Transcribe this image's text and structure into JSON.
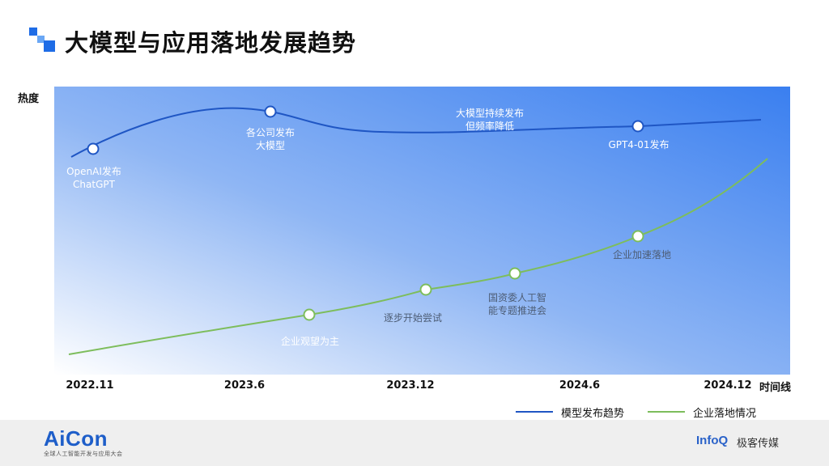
{
  "title": "大模型与应用落地发展趋势",
  "colors": {
    "model_line": "#1f56c4",
    "enterprise_line": "#7dbd5c",
    "bg_dark": "#3a7ff0",
    "bg_light": "#ffffff",
    "accent": "#1e6ce6"
  },
  "chart_data": {
    "type": "line",
    "ylabel": "热度",
    "xlabel": "时间线",
    "x_ticks": [
      "2022.11",
      "2023.6",
      "2023.12",
      "2024.6",
      "2024.12"
    ],
    "series": [
      {
        "name": "模型发布趋势",
        "color": "#1f56c4",
        "points": [
          {
            "x": "2022.12",
            "label": "OpenAI发布\nChatGPT"
          },
          {
            "x": "2023.7",
            "label": "各公司发布\n大模型"
          },
          {
            "x": "2024.8",
            "label": "GPT4-01发布"
          }
        ]
      },
      {
        "name": "企业落地情况",
        "color": "#7dbd5c",
        "points": [
          {
            "x": "2023.9",
            "label": "企业观望为主"
          },
          {
            "x": "2024.1",
            "label": "逐步开始尝试"
          },
          {
            "x": "2024.4",
            "label": "国资委人工智\n能专题推进会"
          },
          {
            "x": "2024.8",
            "label": "企业加速落地"
          }
        ]
      }
    ],
    "annotations": [
      "大模型持续发布\n但频率降低"
    ]
  },
  "legend": [
    {
      "label": "模型发布趋势",
      "color": "#1f56c4"
    },
    {
      "label": "企业落地情况",
      "color": "#7dbd5c"
    }
  ],
  "footer": {
    "left_logo": "AiCon",
    "left_sub": "全球人工智能开发与应用大会",
    "right_logo": "InfoQ",
    "right_cn": "极客传媒"
  }
}
